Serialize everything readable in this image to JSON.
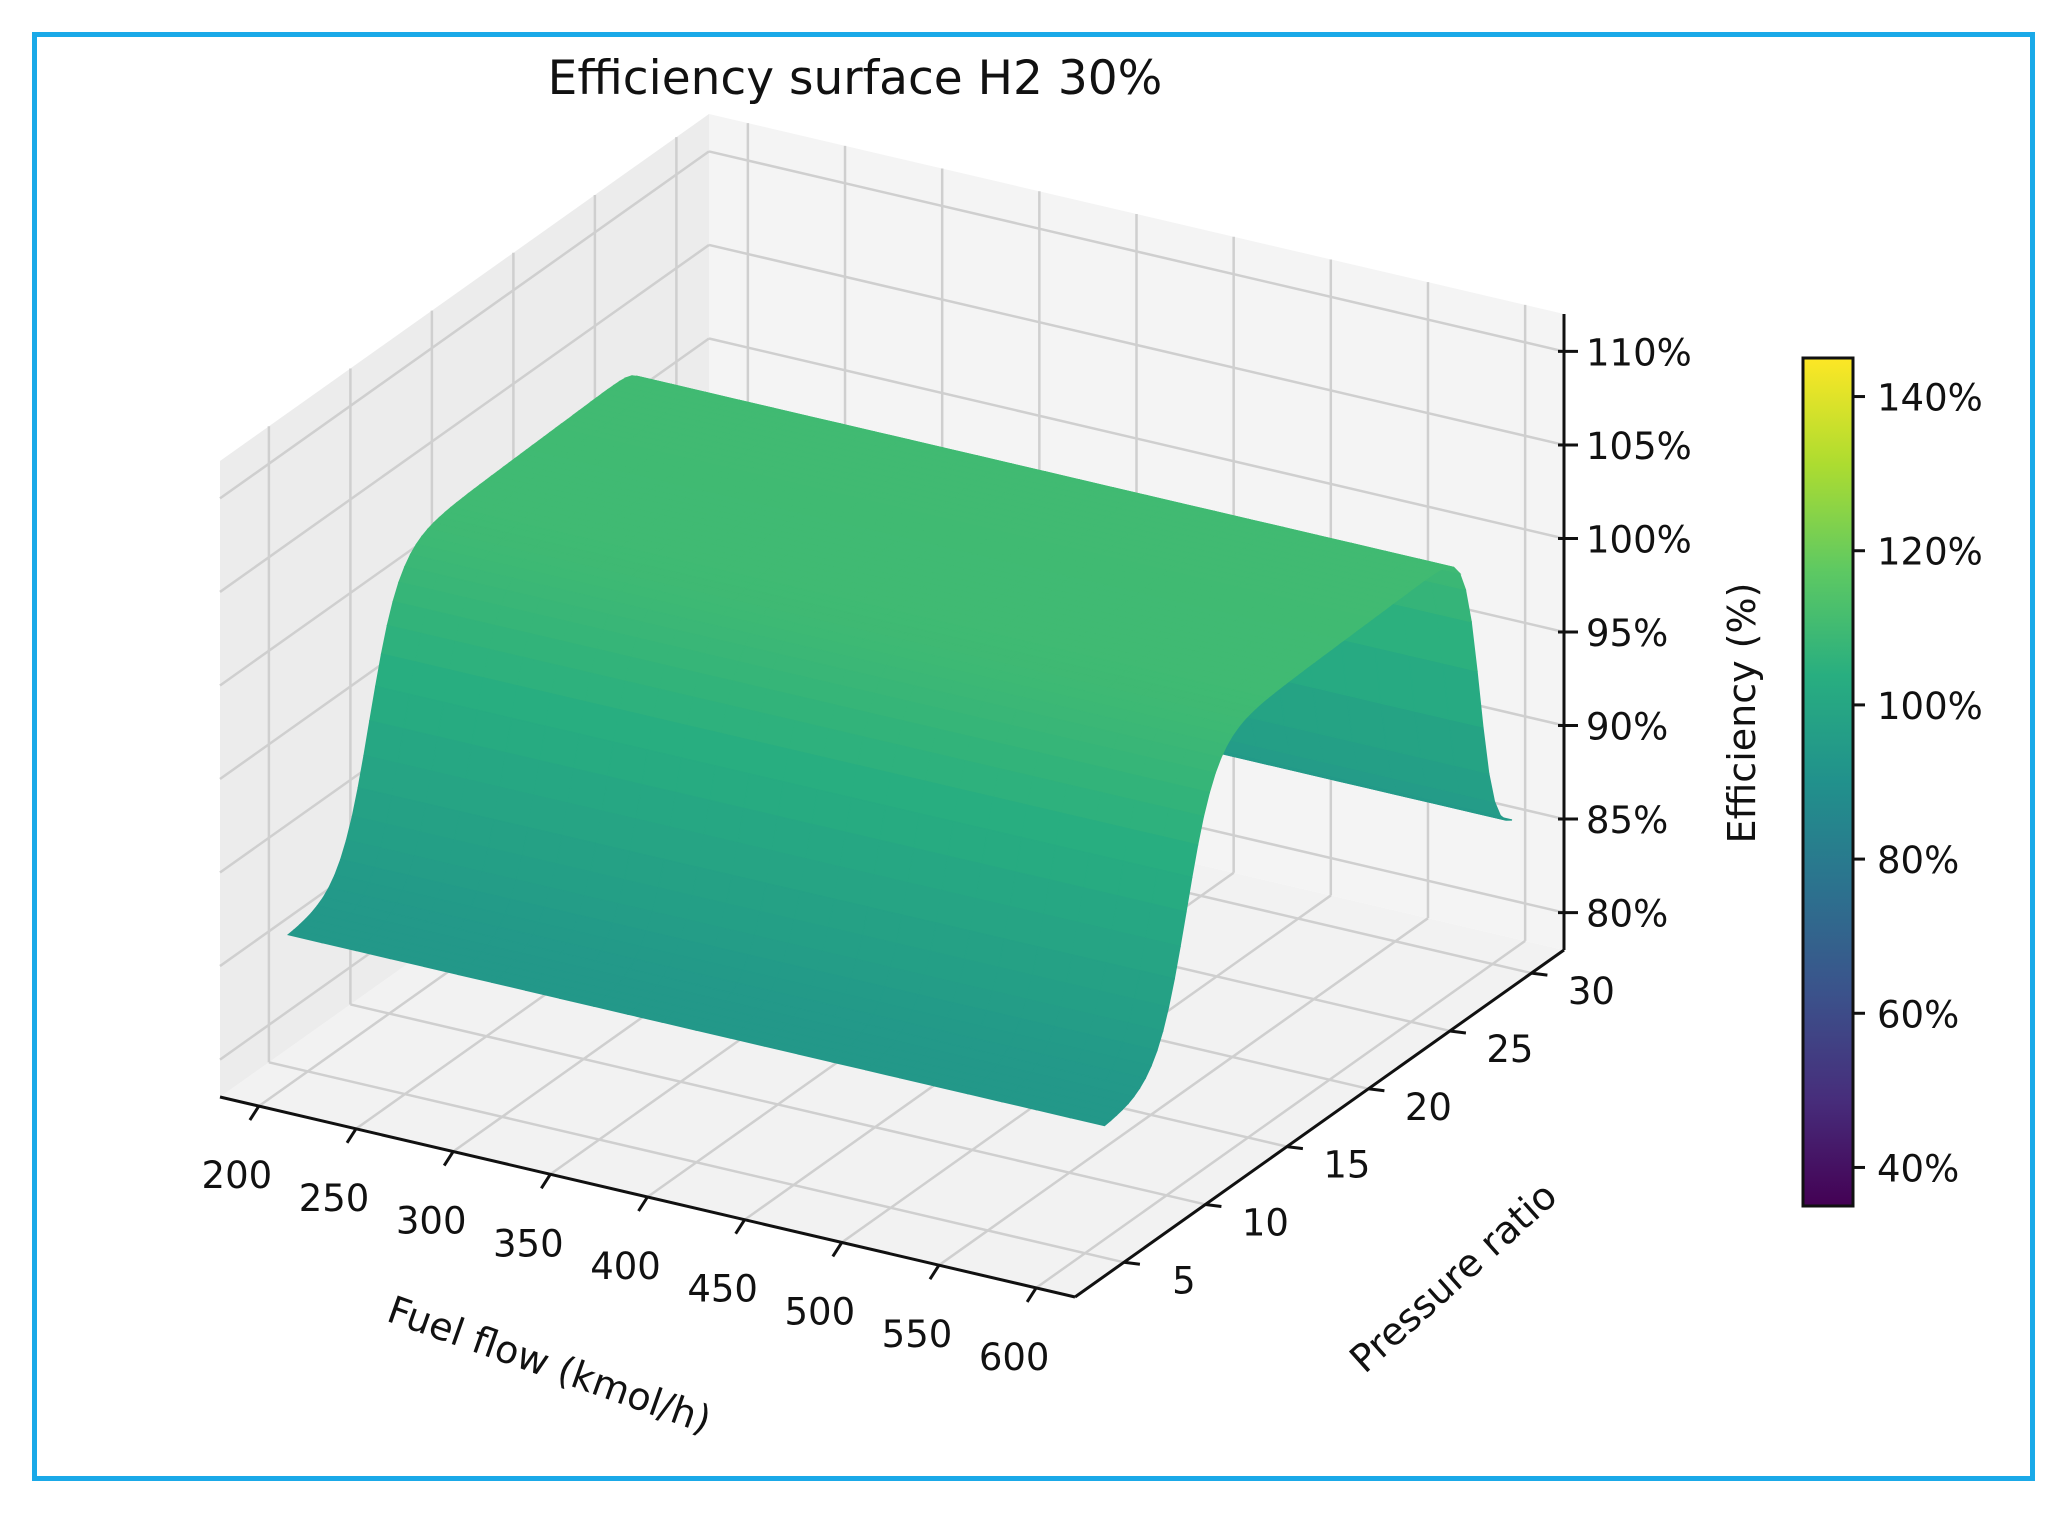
{
  "chart_data": {
    "type": "surface",
    "title": "Efficiency surface H2 30%",
    "xlabel": "Fuel flow (kmol/h)",
    "ylabel": "Pressure ratio",
    "zlabel": "Efficiency (%)",
    "x_ticks": [
      "200",
      "250",
      "300",
      "350",
      "400",
      "450",
      "500",
      "550",
      "600"
    ],
    "y_ticks": [
      "5",
      "10",
      "15",
      "20",
      "25",
      "30"
    ],
    "z_ticks": [
      "80%",
      "85%",
      "90%",
      "95%",
      "100%",
      "105%",
      "110%"
    ],
    "xlim": [
      180,
      620
    ],
    "ylim": [
      2,
      32
    ],
    "zlim": [
      78,
      112
    ],
    "surface": {
      "x_range": [
        190,
        610
      ],
      "y_range": [
        5,
        30
      ],
      "baseline_efficiency": 85,
      "plateau_efficiency": 101.5,
      "plateau_y_start": 10,
      "plateau_y_end": 28
    },
    "colorbar": {
      "colormap": "viridis",
      "range": [
        35,
        145
      ],
      "ticks": [
        "40%",
        "60%",
        "80%",
        "100%",
        "120%",
        "140%"
      ],
      "tick_values": [
        40,
        60,
        80,
        100,
        120,
        140
      ]
    }
  }
}
